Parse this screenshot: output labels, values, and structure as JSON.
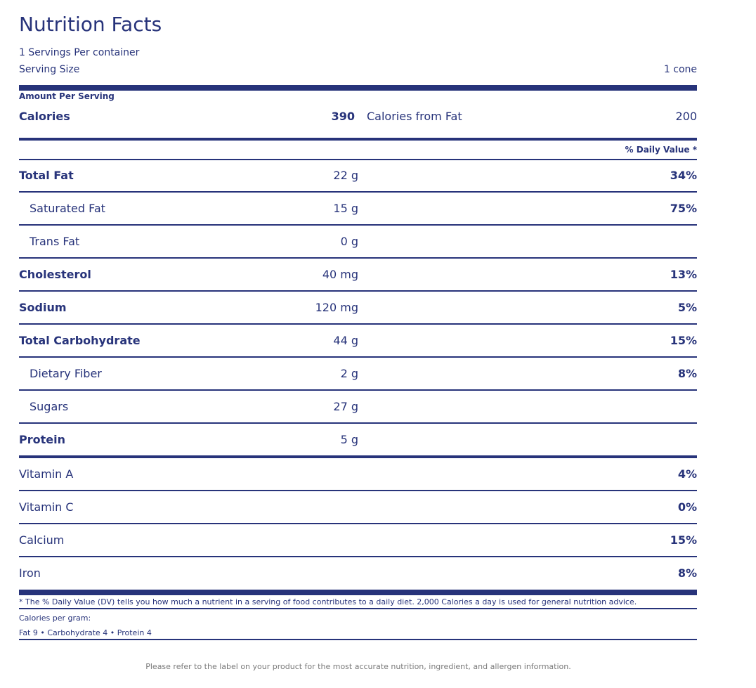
{
  "label": {
    "title": "Nutrition Facts",
    "servings_per_container": "1 Servings Per container",
    "serving_size_label": "Serving Size",
    "serving_size_value": "1 cone",
    "amount_per_serving": "Amount Per Serving",
    "calories_label": "Calories",
    "calories_value": "390",
    "calories_from_fat_label": "Calories from Fat",
    "calories_from_fat_value": "200",
    "daily_value_header": "% Daily Value *"
  },
  "nutrients": [
    {
      "name": "Total Fat",
      "amount": "22 g",
      "dv": "34%"
    },
    {
      "name": "Saturated Fat",
      "amount": "15 g",
      "dv": "75%"
    },
    {
      "name": "Trans Fat",
      "amount": "0 g",
      "dv": ""
    },
    {
      "name": "Cholesterol",
      "amount": "40 mg",
      "dv": "13%"
    },
    {
      "name": "Sodium",
      "amount": "120 mg",
      "dv": "5%"
    },
    {
      "name": "Total Carbohydrate",
      "amount": "44 g",
      "dv": "15%"
    },
    {
      "name": "Dietary Fiber",
      "amount": "2 g",
      "dv": "8%"
    },
    {
      "name": "Sugars",
      "amount": "27 g",
      "dv": ""
    },
    {
      "name": "Protein",
      "amount": "5 g",
      "dv": ""
    }
  ],
  "vitamins": [
    {
      "name": "Vitamin A",
      "dv": "4%"
    },
    {
      "name": "Vitamin C",
      "dv": "0%"
    },
    {
      "name": "Calcium",
      "dv": "15%"
    },
    {
      "name": "Iron",
      "dv": "8%"
    }
  ],
  "footer": {
    "footnote": "* The % Daily Value (DV) tells you how much a nutrient in a serving of food contributes to a daily diet. 2,000 Calories a day is used for general nutrition advice.",
    "calories_per_gram_label": "Calories per gram:",
    "calories_per_gram_values": "Fat 9 • Carbohydrate 4 • Protein 4",
    "disclaimer": "Please refer to the label on your product for the most accurate nutrition, ingredient, and allergen information."
  },
  "colors": {
    "primary": "#27337a",
    "disclaimer": "#7a7a7a"
  }
}
